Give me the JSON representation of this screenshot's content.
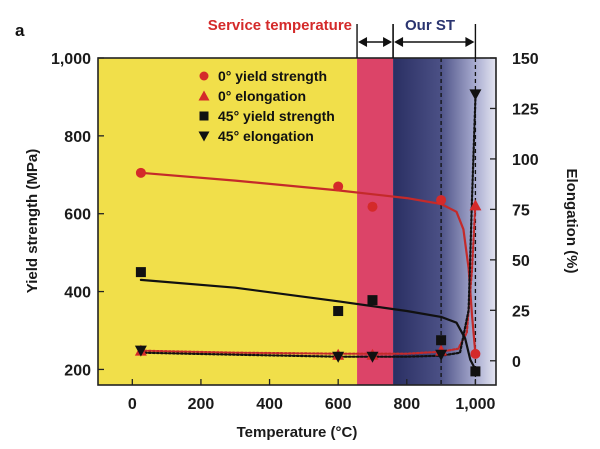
{
  "panel_label": "a",
  "chart_data": {
    "type": "scatter",
    "xlabel": "Temperature (°C)",
    "ylabel": "Yield strength (MPa)",
    "y2label": "Elongation (%)",
    "xlim": [
      -100,
      1060
    ],
    "ylim": [
      160,
      1000
    ],
    "y2lim": [
      -12,
      150
    ],
    "x_ticks": [
      0,
      200,
      400,
      600,
      800,
      1000
    ],
    "x_tick_labels": [
      "0",
      "200",
      "400",
      "600",
      "800",
      "1,000"
    ],
    "y_ticks": [
      200,
      400,
      600,
      800,
      1000
    ],
    "y_tick_labels": [
      "200",
      "400",
      "600",
      "800",
      "1,000"
    ],
    "y2_ticks": [
      0,
      25,
      50,
      75,
      100,
      125,
      150
    ],
    "y2_tick_labels": [
      "0",
      "25",
      "50",
      "75",
      "100",
      "125",
      "150"
    ],
    "regions": [
      {
        "name": "base",
        "from": -100,
        "to": 655,
        "color": "#f1df4a"
      },
      {
        "name": "service",
        "from": 655,
        "to": 760,
        "color": "#dc4468"
      },
      {
        "name": "our_st",
        "from": 760,
        "to": 1060,
        "color": "#2f3566"
      }
    ],
    "annotations": {
      "service_label": "Service temperature",
      "service_range": [
        655,
        760
      ],
      "our_st_label": "Our ST",
      "our_st_range": [
        760,
        1000
      ],
      "dashed_lines_x": [
        900,
        1000
      ]
    },
    "series": [
      {
        "name": "0° yield strength",
        "marker": "circle",
        "color": "#d42a2a",
        "axis": "left",
        "x": [
          25,
          600,
          700,
          900,
          1000
        ],
        "y": [
          705,
          670,
          618,
          635,
          240
        ]
      },
      {
        "name": "0° elongation",
        "marker": "triangle-up",
        "color": "#d42a2a",
        "axis": "right",
        "x": [
          25,
          600,
          700,
          900,
          1000
        ],
        "y": [
          5,
          3,
          3,
          5,
          77
        ]
      },
      {
        "name": "45° yield strength",
        "marker": "square",
        "color": "#111111",
        "axis": "left",
        "x": [
          25,
          600,
          700,
          900,
          1000
        ],
        "y": [
          450,
          350,
          378,
          275,
          195
        ]
      },
      {
        "name": "45° elongation",
        "marker": "triangle-down",
        "color": "#111111",
        "axis": "right",
        "x": [
          25,
          600,
          700,
          900,
          1000
        ],
        "y": [
          5,
          2,
          2,
          3,
          132
        ]
      }
    ],
    "fit_curves": [
      {
        "color": "#c42a2a",
        "style": "solid",
        "axis": "left",
        "x": [
          25,
          300,
          600,
          800,
          900,
          945,
          965,
          980,
          990,
          1000
        ],
        "y": [
          705,
          685,
          660,
          640,
          625,
          605,
          560,
          460,
          340,
          240
        ]
      },
      {
        "color": "#c42a2a",
        "style": "dotted",
        "axis": "right",
        "x": [
          25,
          300,
          600,
          800,
          900,
          950,
          975,
          990,
          1000
        ],
        "y": [
          5,
          4,
          3.5,
          3.5,
          4.5,
          6,
          14,
          45,
          78
        ]
      },
      {
        "color": "#111111",
        "style": "solid",
        "axis": "left",
        "x": [
          25,
          300,
          600,
          800,
          900,
          945,
          970,
          985,
          1000
        ],
        "y": [
          430,
          410,
          375,
          350,
          335,
          320,
          280,
          225,
          200
        ]
      },
      {
        "color": "#111111",
        "style": "dotted",
        "axis": "right",
        "x": [
          25,
          300,
          600,
          800,
          900,
          955,
          980,
          990,
          1000
        ],
        "y": [
          4,
          3,
          2,
          2,
          2.5,
          4,
          25,
          80,
          130
        ]
      }
    ]
  }
}
